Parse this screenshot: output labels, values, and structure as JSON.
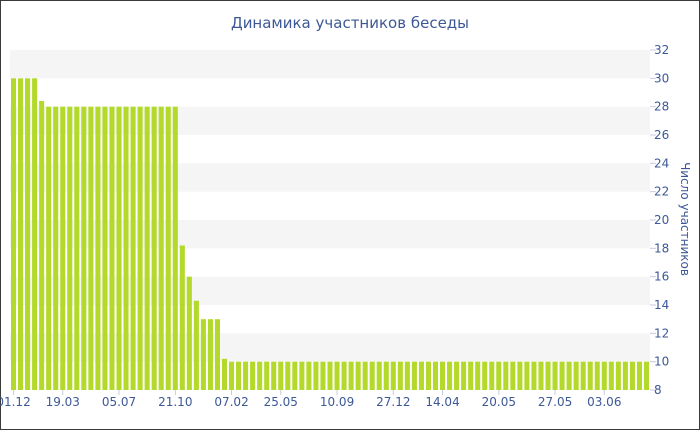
{
  "chart_data": {
    "type": "bar",
    "title": "Динамика участников беседы",
    "xlabel": "",
    "ylabel": "Число участников",
    "ylim": [
      8,
      32
    ],
    "yticks": [
      8,
      10,
      12,
      14,
      16,
      18,
      20,
      22,
      24,
      26,
      28,
      30,
      32
    ],
    "y_axis_side": "right",
    "grid": "alternating horizontal bands",
    "bar_color": "#b3d92b",
    "band_color": "#f5f5f5",
    "text_color": "#3d5896",
    "xtick_labels": [
      "01.12",
      "19.03",
      "05.07",
      "21.10",
      "07.02",
      "25.05",
      "10.09",
      "27.12",
      "14.04",
      "20.05",
      "27.05",
      "03.06"
    ],
    "xtick_bar_index": [
      0,
      7,
      15,
      23,
      31,
      38,
      46,
      54,
      61,
      69,
      77,
      84
    ],
    "values": [
      30,
      30,
      30,
      30,
      28.4,
      28,
      28,
      28,
      28,
      28,
      28,
      28,
      28,
      28,
      28,
      28,
      28,
      28,
      28,
      28,
      28,
      28,
      28,
      28,
      18.2,
      16,
      14.3,
      13,
      13,
      13,
      10.2,
      10,
      10,
      10,
      10,
      10,
      10,
      10,
      10,
      10,
      10,
      10,
      10,
      10,
      10,
      10,
      10,
      10,
      10,
      10,
      10,
      10,
      10,
      10,
      10,
      10,
      10,
      10,
      10,
      10,
      10,
      10,
      10,
      10,
      10,
      10,
      10,
      10,
      10,
      10,
      10,
      10,
      10,
      10,
      10,
      10,
      10,
      10,
      10,
      10,
      10,
      10,
      10,
      10,
      10,
      10,
      10,
      10,
      10,
      10,
      10
    ]
  }
}
